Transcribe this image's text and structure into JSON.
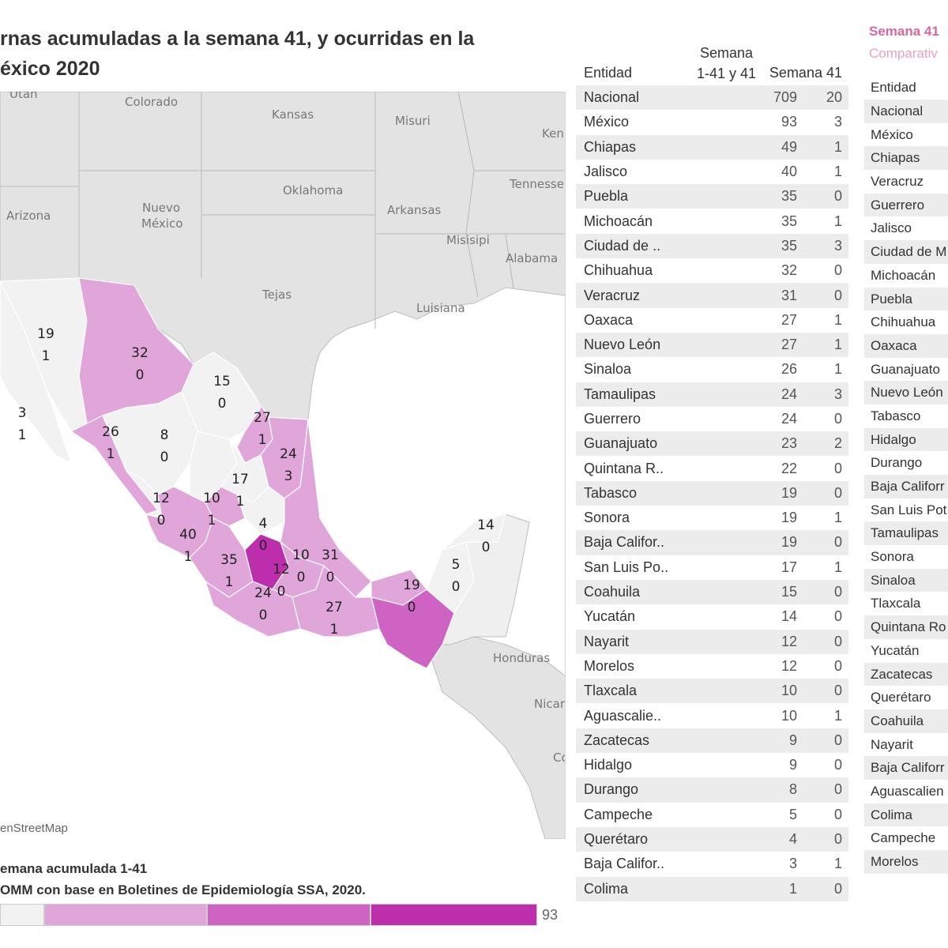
{
  "title": {
    "line1": "rnas acumuladas a la semana 41, y ocurridas en la",
    "line2": "éxico 2020"
  },
  "map": {
    "credit": "enStreetMap",
    "place_labels": [
      {
        "name": "Utah"
      },
      {
        "name": "Colorado"
      },
      {
        "name": "Kansas"
      },
      {
        "name": "Misuri"
      },
      {
        "name": "Ken"
      },
      {
        "name": "Oklahoma"
      },
      {
        "name": "Tennesse"
      },
      {
        "name": "Arizona"
      },
      {
        "name": "Nuevo"
      },
      {
        "name": "México"
      },
      {
        "name": "Arkansas"
      },
      {
        "name": "Misisipi"
      },
      {
        "name": "Alabama"
      },
      {
        "name": "Tejas"
      },
      {
        "name": "Luisiana"
      },
      {
        "name": "Honduras"
      },
      {
        "name": "Nicar"
      },
      {
        "name": "Co"
      }
    ],
    "values": [
      {
        "acc": "19",
        "wk": "1"
      },
      {
        "acc": "32",
        "wk": "0"
      },
      {
        "acc": "15",
        "wk": "0"
      },
      {
        "acc": "3",
        "wk": "1"
      },
      {
        "acc": "26",
        "wk": "1"
      },
      {
        "acc": "8",
        "wk": "0"
      },
      {
        "acc": "27",
        "wk": "1"
      },
      {
        "acc": "24",
        "wk": "3"
      },
      {
        "acc": "17",
        "wk": "1"
      },
      {
        "acc": "12",
        "wk": "0"
      },
      {
        "acc": "10",
        "wk": "1"
      },
      {
        "acc": "40",
        "wk": "1"
      },
      {
        "acc": "4",
        "wk": "0"
      },
      {
        "acc": "35",
        "wk": "1"
      },
      {
        "acc": "12",
        "wk": "0"
      },
      {
        "acc": "10",
        "wk": "0"
      },
      {
        "acc": "31",
        "wk": "0"
      },
      {
        "acc": "24",
        "wk": "0"
      },
      {
        "acc": "27",
        "wk": "1"
      },
      {
        "acc": "19",
        "wk": "0"
      },
      {
        "acc": "5",
        "wk": "0"
      },
      {
        "acc": "14",
        "wk": "0"
      }
    ]
  },
  "legend": {
    "title": "emana acumulada 1-41",
    "source": "OMM con base en Boletines de Epidemiología SSA, 2020.",
    "colors": [
      "#f2f2f2",
      "#e0a6d9",
      "#cf63c3",
      "#bd2ead"
    ],
    "max_label": "93"
  },
  "table": {
    "header_entity": "Entidad",
    "header_acc_1": "Semana",
    "header_acc_2": "1-41 y 41",
    "header_week": "Semana 41",
    "rows": [
      {
        "name": "Nacional",
        "acc": "709",
        "wk": "20"
      },
      {
        "name": "México",
        "acc": "93",
        "wk": "3"
      },
      {
        "name": "Chiapas",
        "acc": "49",
        "wk": "1"
      },
      {
        "name": "Jalisco",
        "acc": "40",
        "wk": "1"
      },
      {
        "name": "Puebla",
        "acc": "35",
        "wk": "0"
      },
      {
        "name": "Michoacán",
        "acc": "35",
        "wk": "1"
      },
      {
        "name": "Ciudad de ..",
        "acc": "35",
        "wk": "3"
      },
      {
        "name": "Chihuahua",
        "acc": "32",
        "wk": "0"
      },
      {
        "name": "Veracruz",
        "acc": "31",
        "wk": "0"
      },
      {
        "name": "Oaxaca",
        "acc": "27",
        "wk": "1"
      },
      {
        "name": "Nuevo León",
        "acc": "27",
        "wk": "1"
      },
      {
        "name": "Sinaloa",
        "acc": "26",
        "wk": "1"
      },
      {
        "name": "Tamaulipas",
        "acc": "24",
        "wk": "3"
      },
      {
        "name": "Guerrero",
        "acc": "24",
        "wk": "0"
      },
      {
        "name": "Guanajuato",
        "acc": "23",
        "wk": "2"
      },
      {
        "name": "Quintana R..",
        "acc": "22",
        "wk": "0"
      },
      {
        "name": "Tabasco",
        "acc": "19",
        "wk": "0"
      },
      {
        "name": "Sonora",
        "acc": "19",
        "wk": "1"
      },
      {
        "name": "Baja Califor..",
        "acc": "19",
        "wk": "0"
      },
      {
        "name": "San Luis Po..",
        "acc": "17",
        "wk": "1"
      },
      {
        "name": "Coahuila",
        "acc": "15",
        "wk": "0"
      },
      {
        "name": "Yucatán",
        "acc": "14",
        "wk": "0"
      },
      {
        "name": "Nayarit",
        "acc": "12",
        "wk": "0"
      },
      {
        "name": "Morelos",
        "acc": "12",
        "wk": "0"
      },
      {
        "name": "Tlaxcala",
        "acc": "10",
        "wk": "0"
      },
      {
        "name": "Aguascalie..",
        "acc": "10",
        "wk": "1"
      },
      {
        "name": "Zacatecas",
        "acc": "9",
        "wk": "0"
      },
      {
        "name": "Hidalgo",
        "acc": "9",
        "wk": "0"
      },
      {
        "name": "Durango",
        "acc": "8",
        "wk": "0"
      },
      {
        "name": "Campeche",
        "acc": "5",
        "wk": "0"
      },
      {
        "name": "Querétaro",
        "acc": "4",
        "wk": "0"
      },
      {
        "name": "Baja Califor..",
        "acc": "3",
        "wk": "1"
      },
      {
        "name": "Colima",
        "acc": "1",
        "wk": "0"
      }
    ]
  },
  "side": {
    "title": "Semana 41",
    "subtitle": "Comparativ",
    "header": "Entidad",
    "rows": [
      "Nacional",
      "México",
      "Chiapas",
      "Veracruz",
      "Guerrero",
      "Jalisco",
      "Ciudad de M",
      "Michoacán",
      "Puebla",
      "Chihuahua",
      "Oaxaca",
      "Guanajuato",
      "Nuevo León",
      "Tabasco",
      "Hidalgo",
      "Durango",
      "Baja Califorr",
      "San Luis Pot",
      "Tamaulipas",
      "Sonora",
      "Sinaloa",
      "Tlaxcala",
      "Quintana Ro",
      "Yucatán",
      "Zacatecas",
      "Querétaro",
      "Coahuila",
      "Nayarit",
      "Baja Califorr",
      "Aguascalien",
      "Colima",
      "Campeche",
      "Morelos"
    ]
  }
}
